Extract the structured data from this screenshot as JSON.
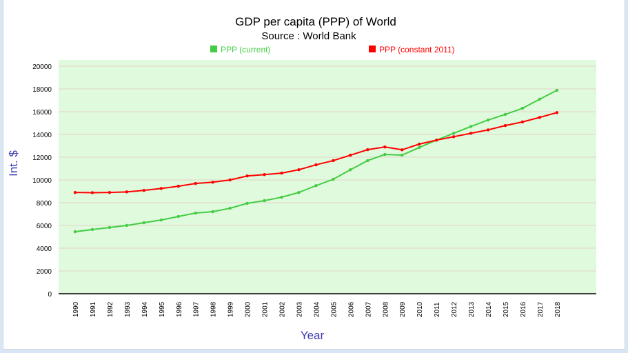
{
  "chart_data": {
    "type": "line",
    "title": "GDP per capita (PPP) of World",
    "subtitle": "Source : World Bank",
    "xlabel": "Year",
    "ylabel": "Int. $",
    "ylim": [
      0,
      20000
    ],
    "yticks": [
      0,
      2000,
      4000,
      6000,
      8000,
      10000,
      12000,
      14000,
      16000,
      18000,
      20000
    ],
    "grid": true,
    "legend_position": "top",
    "categories": [
      "1990",
      "1991",
      "1992",
      "1993",
      "1994",
      "1995",
      "1996",
      "1997",
      "1998",
      "1999",
      "2000",
      "2001",
      "2002",
      "2003",
      "2004",
      "2005",
      "2006",
      "2007",
      "2008",
      "2009",
      "2010",
      "2011",
      "2012",
      "2013",
      "2014",
      "2015",
      "2016",
      "2017",
      "2018"
    ],
    "series": [
      {
        "name": "PPP (current)",
        "color": "#44cc44",
        "values": [
          5450,
          5640,
          5820,
          6000,
          6240,
          6480,
          6790,
          7090,
          7210,
          7510,
          7940,
          8180,
          8480,
          8900,
          9500,
          10060,
          10900,
          11700,
          12240,
          12180,
          12850,
          13500,
          14100,
          14700,
          15270,
          15760,
          16300,
          17100,
          17880
        ]
      },
      {
        "name": "PPP (constant 2011)",
        "color": "#ff0000",
        "values": [
          8900,
          8880,
          8900,
          8950,
          9080,
          9250,
          9450,
          9690,
          9800,
          10000,
          10350,
          10470,
          10600,
          10900,
          11330,
          11700,
          12180,
          12660,
          12900,
          12650,
          13150,
          13500,
          13800,
          14100,
          14400,
          14780,
          15100,
          15500,
          15920
        ]
      }
    ]
  }
}
